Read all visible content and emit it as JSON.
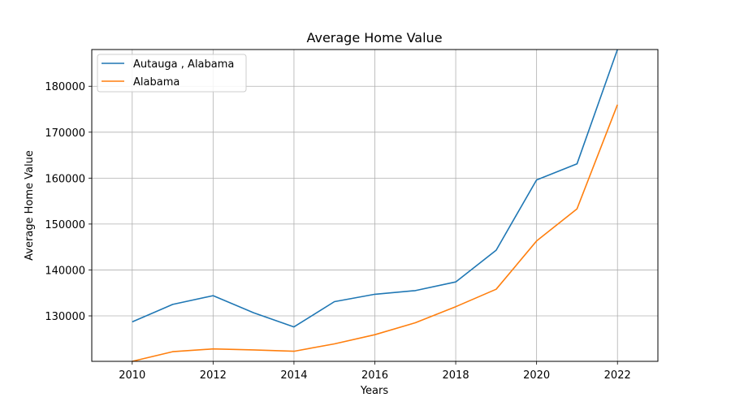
{
  "chart_data": {
    "type": "line",
    "title": "Average Home Value",
    "xlabel": "Years",
    "ylabel": "Average Home Value",
    "xlim": [
      2009,
      2023
    ],
    "ylim": [
      120100,
      188000
    ],
    "xticks": [
      2010,
      2012,
      2014,
      2016,
      2018,
      2020,
      2022
    ],
    "yticks": [
      130000,
      140000,
      150000,
      160000,
      170000,
      180000
    ],
    "grid": true,
    "legend_position": "top-left",
    "x": [
      2010,
      2011,
      2012,
      2013,
      2014,
      2015,
      2016,
      2017,
      2018,
      2019,
      2020,
      2021,
      2022
    ],
    "series": [
      {
        "name": "Autauga , Alabama",
        "color": "#1f77b4",
        "values": [
          128700,
          132500,
          134400,
          130700,
          127600,
          133100,
          134700,
          135500,
          137400,
          144300,
          159600,
          163100,
          188000
        ]
      },
      {
        "name": "Alabama",
        "color": "#ff7f0e",
        "values": [
          120100,
          122200,
          122800,
          122600,
          122300,
          123900,
          125900,
          128500,
          132000,
          135800,
          146300,
          153300,
          176000
        ]
      }
    ]
  }
}
